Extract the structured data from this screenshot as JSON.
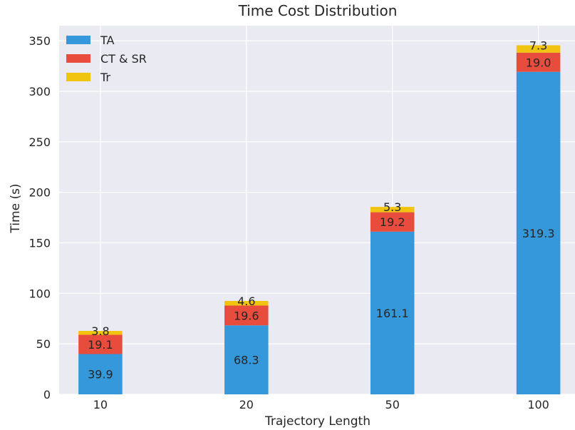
{
  "chart_data": {
    "type": "bar",
    "stacked": true,
    "title": "Time Cost Distribution",
    "xlabel": "Trajectory Length",
    "ylabel": "Time (s)",
    "categories": [
      "10",
      "20",
      "50",
      "100"
    ],
    "series": [
      {
        "name": "TA",
        "color": "#3498db",
        "values": [
          39.9,
          68.3,
          161.1,
          319.3
        ]
      },
      {
        "name": "CT & SR",
        "color": "#e74c3c",
        "values": [
          19.1,
          19.6,
          19.2,
          19.0
        ]
      },
      {
        "name": "Tr",
        "color": "#f1c40f",
        "values": [
          3.8,
          4.6,
          5.3,
          7.3
        ]
      }
    ],
    "ylim": [
      0,
      365
    ],
    "yticks": [
      0,
      50,
      100,
      150,
      200,
      250,
      300,
      350
    ],
    "grid": true,
    "legend_position": "top-left",
    "background_color": "#eaeaf2"
  }
}
